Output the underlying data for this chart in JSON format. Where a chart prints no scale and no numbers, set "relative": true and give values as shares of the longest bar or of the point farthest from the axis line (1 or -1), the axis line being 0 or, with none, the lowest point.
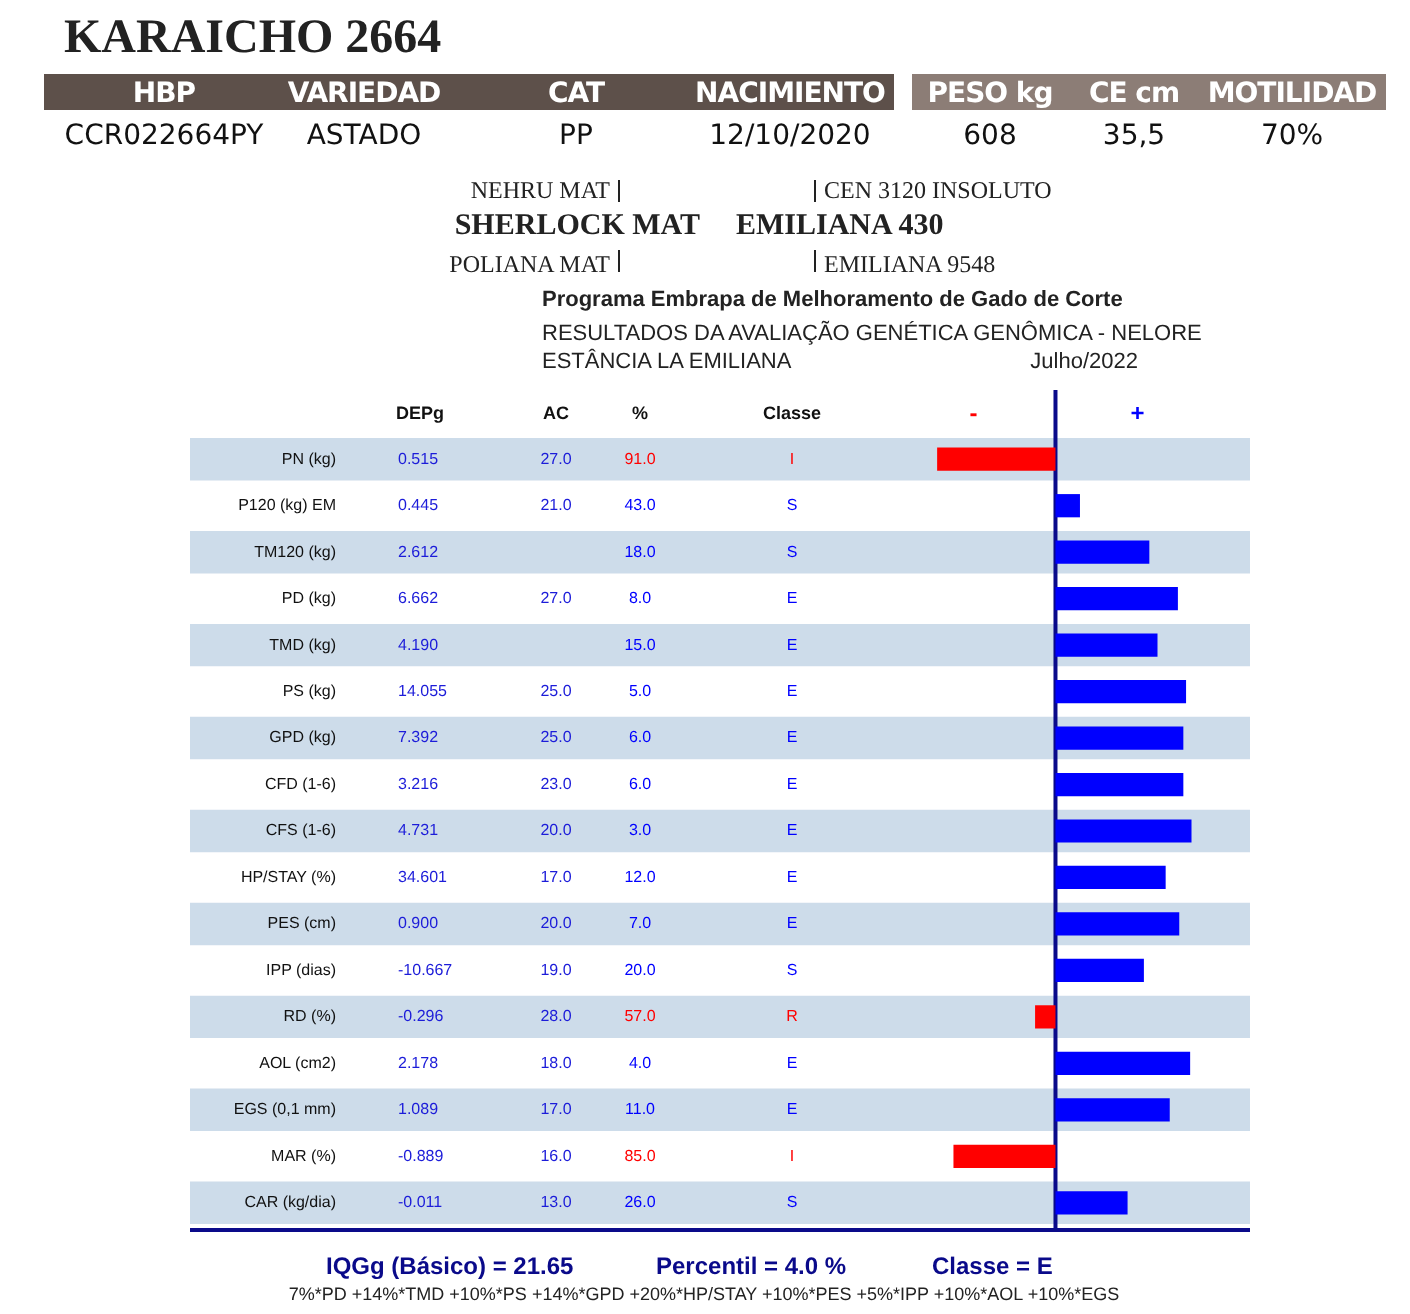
{
  "chart_data": {
    "type": "bar",
    "orientation": "horizontal",
    "relative": true,
    "title": "KARAICHO 2664",
    "categories": [
      "PN (kg)",
      "P120 (kg) EM",
      "TM120 (kg)",
      "PD (kg)",
      "TMD (kg)",
      "PS (kg)",
      "GPD (kg)",
      "CFD (1-6)",
      "CFS (1-6)",
      "HP/STAY (%)",
      "PES (cm)",
      "IPP (dias)",
      "RD (%)",
      "AOL (cm2)",
      "EGS (0,1 mm)",
      "MAR (%)",
      "CAR (kg/dia)"
    ],
    "values": [
      -0.87,
      0.18,
      0.69,
      0.9,
      0.75,
      0.96,
      0.94,
      0.94,
      1,
      0.81,
      0.91,
      0.65,
      -0.15,
      0.99,
      0.84,
      -0.75,
      0.53
    ],
    "colors": [
      "#ff0000",
      "#0000ff",
      "#0000ff",
      "#0000ff",
      "#0000ff",
      "#0000ff",
      "#0000ff",
      "#0000ff",
      "#0000ff",
      "#0000ff",
      "#0000ff",
      "#0000ff",
      "#ff0000",
      "#0000ff",
      "#0000ff",
      "#ff0000",
      "#0000ff"
    ],
    "ref_lines": [
      {
        "axis": "x",
        "value": 0,
        "color": "#0a0a8a"
      }
    ],
    "annotations": [
      "HBP",
      "VARIEDAD",
      "CAT",
      "NACIMIENTO",
      "PESO kg",
      "CE cm",
      "MOTILIDAD",
      "CCR022664PY",
      "ASTADO",
      "PP",
      "12/10/2020",
      "608",
      "35,5",
      "70%",
      "NEHRU MAT",
      "SHERLOCK MAT",
      "POLIANA MAT",
      "CEN 3120 INSOLUTO",
      "EMILIANA 430",
      "EMILIANA 9548",
      "Programa Embrapa de Melhoramento de Gado de Corte",
      "RESULTADOS DA AVALIAÇÃO GENÉTICA GENÔMICA - NELORE",
      "ESTÂNCIA LA EMILIANA",
      "Julho/2022",
      "DEPg",
      "AC",
      "%",
      "Classe",
      "0.515",
      "27.0",
      "91.0",
      "I",
      "0.445",
      "21.0",
      "43.0",
      "S",
      "2.612",
      null,
      "18.0",
      "S",
      "6.662",
      "27.0",
      "8.0",
      "E",
      "4.190",
      null,
      "15.0",
      "E",
      "14.055",
      "25.0",
      "5.0",
      "E",
      "7.392",
      "25.0",
      "6.0",
      "E",
      "3.216",
      "23.0",
      "6.0",
      "E",
      "4.731",
      "20.0",
      "3.0",
      "E",
      "34.601",
      "17.0",
      "12.0",
      "E",
      "0.900",
      "20.0",
      "7.0",
      "E",
      "-10.667",
      "19.0",
      "20.0",
      "S",
      "-0.296",
      "28.0",
      "57.0",
      "R",
      "2.178",
      "18.0",
      "4.0",
      "E",
      "1.089",
      "17.0",
      "11.0",
      "E",
      "-0.889",
      "16.0",
      "85.0",
      "I",
      "-0.011",
      "13.0",
      "26.0",
      "S",
      "-",
      "+",
      "IQGg (Básico) = 21.65",
      "Percentil = 4.0 %",
      "Classe = E",
      "7%*PD +14%*TMD +10%*PS +14%*GPD +20%*HP/STAY +10%*PES +5%*IPP +10%*AOL +10%*EGS"
    ]
  }
}
